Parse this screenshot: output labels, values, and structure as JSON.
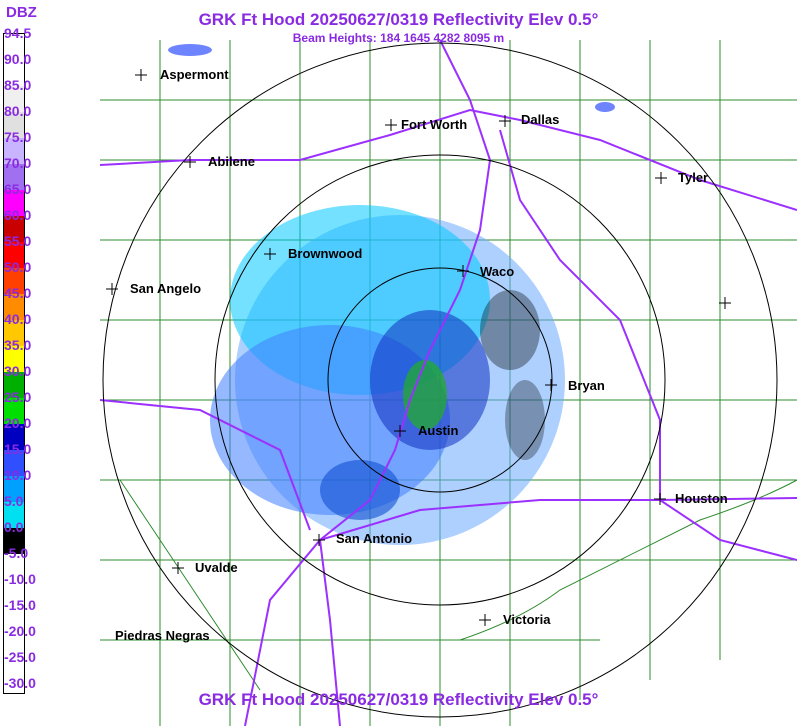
{
  "header": {
    "title": "GRK Ft Hood 20250627/0319 Reflectivity Elev 0.5°",
    "beam_heights": "Beam Heights: 184 1645 4282 8095 m",
    "footer_title": "GRK Ft Hood 20250627/0319 Reflectivity Elev 0.5°"
  },
  "legend": {
    "unit": "DBZ",
    "labels": [
      "94.5",
      "90.0",
      "85.0",
      "80.0",
      "75.0",
      "70.0",
      "65.0",
      "60.0",
      "55.0",
      "50.0",
      "45.0",
      "40.0",
      "35.0",
      "30.0",
      "25.0",
      "20.0",
      "15.0",
      "10.0",
      "5.0",
      "0.0",
      "-5.0",
      "-10.0",
      "-15.0",
      "-20.0",
      "-25.0",
      "-30.0"
    ],
    "colors": [
      "#ffffff",
      "#ffffff",
      "#f0f0f0",
      "#e0e0e0",
      "#c8b4ff",
      "#a070f0",
      "#ff00ff",
      "#c80000",
      "#ff0000",
      "#ff4000",
      "#ff8c00",
      "#ffc800",
      "#ffff00",
      "#00b000",
      "#00e000",
      "#0000c0",
      "#3050ff",
      "#00a0ff",
      "#00e0f0",
      "#000000",
      "#ffffff",
      "#ffffff",
      "#ffffff",
      "#ffffff",
      "#ffffff",
      "#ffffff"
    ]
  },
  "colors": {
    "title": "#8a2be2",
    "county_lines": "#2e8b2e",
    "highways": "#9b30ff",
    "range_rings": "#000000"
  },
  "cities": [
    {
      "name": "Aspermont"
    },
    {
      "name": "Abilene"
    },
    {
      "name": "Fort Worth"
    },
    {
      "name": "Dallas"
    },
    {
      "name": "Tyler"
    },
    {
      "name": "Brownwood"
    },
    {
      "name": "Waco"
    },
    {
      "name": "San Angelo"
    },
    {
      "name": "Bryan"
    },
    {
      "name": "Austin"
    },
    {
      "name": "Houston"
    },
    {
      "name": "San Antonio"
    },
    {
      "name": "Uvalde"
    },
    {
      "name": "Victoria"
    },
    {
      "name": "Piedras Negras"
    }
  ]
}
